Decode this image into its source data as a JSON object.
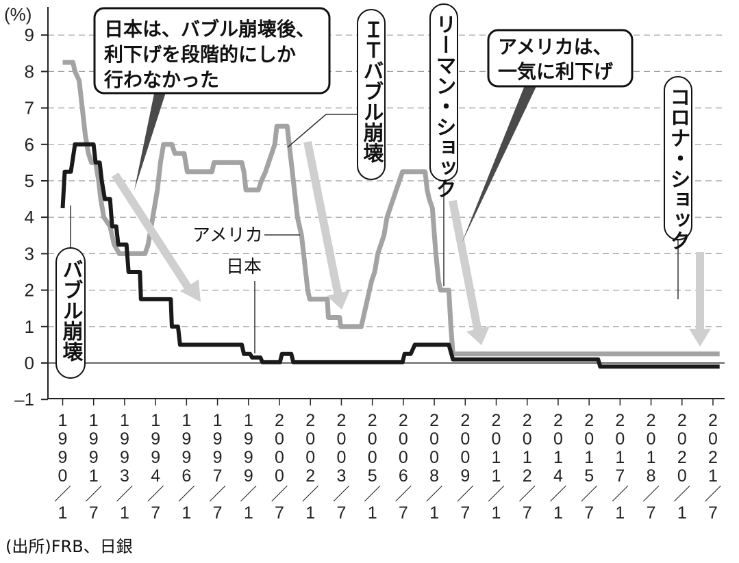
{
  "chart_data": {
    "type": "line",
    "y_unit": "(%)",
    "ylim": [
      -1,
      9.5
    ],
    "y_ticks": [
      9,
      8,
      7,
      6,
      5,
      4,
      3,
      2,
      1,
      0,
      -1
    ],
    "y_tick_labels": [
      "9",
      "8",
      "7",
      "6",
      "5",
      "4",
      "3",
      "2",
      "1",
      "0",
      "–1"
    ],
    "grid": "dashed-horizontal",
    "x_tick_labels": [
      "1990/1",
      "1991/7",
      "1993/1",
      "1994/7",
      "1996/1",
      "1997/7",
      "1999/1",
      "2000/7",
      "2002/1",
      "2003/7",
      "2005/1",
      "2006/7",
      "2008/1",
      "2009/7",
      "2011/1",
      "2012/7",
      "2014/1",
      "2015/7",
      "2017/1",
      "2018/7",
      "2020/1",
      "2021/7"
    ],
    "series": [
      {
        "name": "アメリカ",
        "color": "#a3a3a3",
        "points": [
          [
            1990.0,
            8.25
          ],
          [
            1990.5,
            8.25
          ],
          [
            1990.6,
            8.0
          ],
          [
            1990.8,
            7.75
          ],
          [
            1990.9,
            7.25
          ],
          [
            1991.0,
            6.75
          ],
          [
            1991.1,
            6.25
          ],
          [
            1991.25,
            5.75
          ],
          [
            1991.4,
            5.5
          ],
          [
            1991.6,
            5.5
          ],
          [
            1991.75,
            5.0
          ],
          [
            1991.85,
            4.5
          ],
          [
            1992.0,
            4.0
          ],
          [
            1992.3,
            3.75
          ],
          [
            1992.5,
            3.25
          ],
          [
            1992.75,
            3.0
          ],
          [
            1994.0,
            3.0
          ],
          [
            1994.15,
            3.25
          ],
          [
            1994.3,
            3.75
          ],
          [
            1994.45,
            4.25
          ],
          [
            1994.6,
            4.75
          ],
          [
            1994.75,
            5.5
          ],
          [
            1994.9,
            6.0
          ],
          [
            1995.3,
            6.0
          ],
          [
            1995.45,
            5.75
          ],
          [
            1995.9,
            5.75
          ],
          [
            1996.05,
            5.25
          ],
          [
            1997.25,
            5.25
          ],
          [
            1997.35,
            5.5
          ],
          [
            1998.7,
            5.5
          ],
          [
            1998.8,
            5.25
          ],
          [
            1998.9,
            4.75
          ],
          [
            1999.5,
            4.75
          ],
          [
            1999.65,
            5.0
          ],
          [
            1999.85,
            5.25
          ],
          [
            2000.0,
            5.5
          ],
          [
            2000.15,
            5.75
          ],
          [
            2000.3,
            6.0
          ],
          [
            2000.4,
            6.5
          ],
          [
            2000.9,
            6.5
          ],
          [
            2001.0,
            6.0
          ],
          [
            2001.1,
            5.5
          ],
          [
            2001.2,
            5.0
          ],
          [
            2001.3,
            4.5
          ],
          [
            2001.4,
            4.0
          ],
          [
            2001.5,
            3.75
          ],
          [
            2001.6,
            3.5
          ],
          [
            2001.7,
            3.0
          ],
          [
            2001.8,
            2.5
          ],
          [
            2001.9,
            2.0
          ],
          [
            2002.0,
            1.75
          ],
          [
            2002.85,
            1.75
          ],
          [
            2002.9,
            1.25
          ],
          [
            2003.45,
            1.25
          ],
          [
            2003.5,
            1.0
          ],
          [
            2004.5,
            1.0
          ],
          [
            2004.6,
            1.25
          ],
          [
            2004.7,
            1.5
          ],
          [
            2004.8,
            1.75
          ],
          [
            2004.9,
            2.0
          ],
          [
            2005.0,
            2.25
          ],
          [
            2005.15,
            2.5
          ],
          [
            2005.3,
            3.0
          ],
          [
            2005.45,
            3.25
          ],
          [
            2005.6,
            3.5
          ],
          [
            2005.75,
            4.0
          ],
          [
            2005.9,
            4.25
          ],
          [
            2006.05,
            4.5
          ],
          [
            2006.2,
            4.75
          ],
          [
            2006.35,
            5.0
          ],
          [
            2006.5,
            5.25
          ],
          [
            2007.6,
            5.25
          ],
          [
            2007.7,
            4.75
          ],
          [
            2007.8,
            4.5
          ],
          [
            2007.95,
            4.25
          ],
          [
            2008.05,
            3.5
          ],
          [
            2008.12,
            3.0
          ],
          [
            2008.25,
            2.25
          ],
          [
            2008.35,
            2.0
          ],
          [
            2008.75,
            2.0
          ],
          [
            2008.85,
            1.0
          ],
          [
            2008.95,
            0.25
          ],
          [
            2021.9,
            0.25
          ]
        ]
      },
      {
        "name": "日本",
        "color": "#1a1a1a",
        "points": [
          [
            1990.0,
            4.25
          ],
          [
            1990.1,
            5.25
          ],
          [
            1990.4,
            5.25
          ],
          [
            1990.6,
            6.0
          ],
          [
            1991.5,
            6.0
          ],
          [
            1991.6,
            5.5
          ],
          [
            1991.8,
            5.5
          ],
          [
            1991.9,
            5.0
          ],
          [
            1992.05,
            4.5
          ],
          [
            1992.3,
            4.5
          ],
          [
            1992.4,
            3.75
          ],
          [
            1992.6,
            3.75
          ],
          [
            1992.7,
            3.25
          ],
          [
            1993.1,
            3.25
          ],
          [
            1993.2,
            2.5
          ],
          [
            1993.75,
            2.5
          ],
          [
            1993.8,
            1.75
          ],
          [
            1995.25,
            1.75
          ],
          [
            1995.3,
            1.0
          ],
          [
            1995.6,
            1.0
          ],
          [
            1995.7,
            0.5
          ],
          [
            1998.7,
            0.5
          ],
          [
            1998.8,
            0.25
          ],
          [
            1999.1,
            0.25
          ],
          [
            1999.2,
            0.15
          ],
          [
            1999.6,
            0.15
          ],
          [
            1999.7,
            0.02
          ],
          [
            2000.55,
            0.02
          ],
          [
            2000.65,
            0.25
          ],
          [
            2001.1,
            0.25
          ],
          [
            2001.2,
            0.02
          ],
          [
            2006.5,
            0.02
          ],
          [
            2006.6,
            0.25
          ],
          [
            2006.9,
            0.25
          ],
          [
            2007.1,
            0.5
          ],
          [
            2008.75,
            0.5
          ],
          [
            2008.85,
            0.3
          ],
          [
            2008.95,
            0.1
          ],
          [
            2016.0,
            0.1
          ],
          [
            2016.1,
            -0.1
          ],
          [
            2021.9,
            -0.1
          ]
        ]
      }
    ],
    "series_labels": [
      "アメリカ",
      "日本"
    ],
    "annotations": {
      "bubble_japan": [
        "日本は、バブル崩壊後、",
        "利下げを段階的にしか",
        "行わなかった"
      ],
      "it_bubble": "ＩＴバブル崩壊",
      "lehman": "リーマン・ショック",
      "bubble_us": [
        "アメリカは、",
        "一気に利下げ"
      ],
      "corona": "コロナ・ショック",
      "bubble_collapse": "バブル崩壊"
    },
    "source": "(出所)FRB、日銀"
  }
}
